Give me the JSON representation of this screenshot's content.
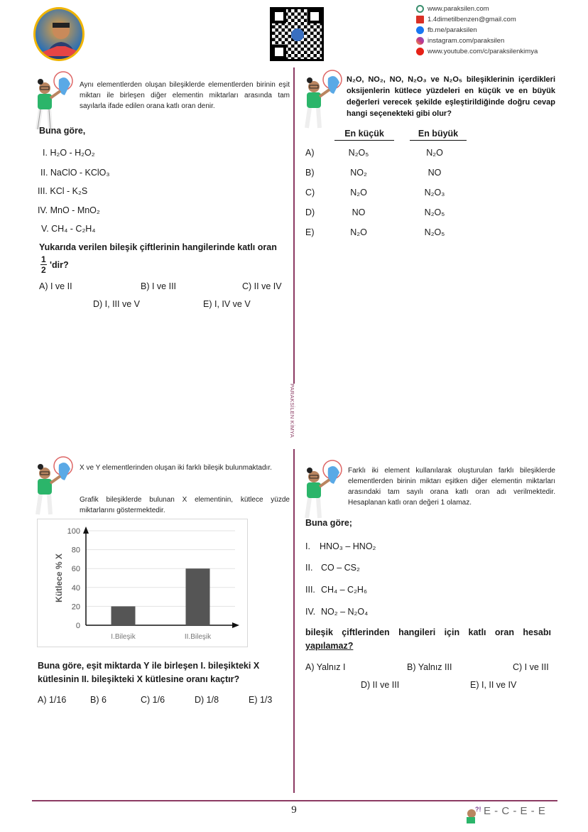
{
  "header": {
    "contacts": [
      {
        "icon": "globe-icon",
        "text": "www.paraksilen.com",
        "color": "#3a8f6e"
      },
      {
        "icon": "gmail-icon",
        "text": "1.4dimetilbenzen@gmail.com",
        "color": "#d93025"
      },
      {
        "icon": "facebook-icon",
        "text": "fb.me/paraksilen",
        "color": "#1877f2"
      },
      {
        "icon": "instagram-icon",
        "text": "instagram.com/paraksilen",
        "color": "#c13584"
      },
      {
        "icon": "youtube-icon",
        "text": "www.youtube.com/c/paraksilenkimya",
        "color": "#e62117"
      }
    ]
  },
  "divider_label": "PARAKSİLEN KİMYA",
  "q1": {
    "intro": "Aynı elementlerden oluşan bileşiklerde elementlerden birinin eşit miktarı ile birleşen diğer elementin miktarları arasında tam sayılarla ifade edilen orana katlı oran denir.",
    "lead": "Buna göre,",
    "items": [
      {
        "num": "I.",
        "text": "H₂O - H₂O₂"
      },
      {
        "num": "II.",
        "text": "NaClO - KClO₃"
      },
      {
        "num": "III.",
        "text": "KCl - K₂S"
      },
      {
        "num": "IV.",
        "text": "MnO - MnO₂"
      },
      {
        "num": "V.",
        "text": "CH₄ - C₂H₄"
      }
    ],
    "question": "Yukarıda verilen bileşik çiftlerinin hangilerinde katlı oran",
    "frac_num": "1",
    "frac_den": "2",
    "question_end": "'dir?",
    "options": [
      "A) I ve II",
      "B) I ve III",
      "C) II ve IV",
      "D) I, III ve V",
      "E) I, IV ve V"
    ]
  },
  "q2": {
    "question": "N₂O, NO₂, NO, N₂O₃ ve N₂O₅ bileşiklerinin içerdikleri oksijenlerin kütlece yüzdeleri en küçük ve en büyük değerleri verecek şekilde eşleştirildiğinde doğru cevap hangi seçenekteki gibi olur?",
    "col_min": "En küçük",
    "col_max": "En büyük",
    "rows": [
      {
        "letter": "A)",
        "min": "N₂O₅",
        "max": "N₂O"
      },
      {
        "letter": "B)",
        "min": "NO₂",
        "max": "NO"
      },
      {
        "letter": "C)",
        "min": "N₂O",
        "max": "N₂O₃"
      },
      {
        "letter": "D)",
        "min": "NO",
        "max": "N₂O₅"
      },
      {
        "letter": "E)",
        "min": "N₂O",
        "max": "N₂O₅"
      }
    ]
  },
  "q3": {
    "intro1": "X ve Y elementlerinden oluşan iki farklı bileşik bulunmaktadır.",
    "intro2": "Grafik bileşiklerde bulunan X elementinin, kütlece yüzde miktarlarını göstermektedir.",
    "question": "Buna göre, eşit miktarda Y ile birleşen I. bileşikteki X kütlesinin II. bileşikteki X kütlesine oranı kaçtır?",
    "options": [
      "A) 1/16",
      "B) 6",
      "C) 1/6",
      "D) 1/8",
      "E) 1/3"
    ]
  },
  "chart_data": {
    "type": "bar",
    "categories": [
      "I.Bileşik",
      "II.Bileşik"
    ],
    "values": [
      20,
      60
    ],
    "ylabel": "Kütlece % X",
    "xlabel": "",
    "ylim": [
      0,
      100
    ],
    "yticks": [
      "0",
      "20",
      "40",
      "60",
      "80",
      "100"
    ],
    "grid": true,
    "bar_color": "#555555"
  },
  "q4": {
    "intro": "Farklı iki element kullanılarak oluşturulan farklı bileşiklerde elementlerden birinin miktarı eşitken diğer elementin miktarları arasındaki tam sayılı orana katlı oran adı verilmektedir. Hesaplanan katlı oran değeri 1 olamaz.",
    "lead": "Buna göre;",
    "items": [
      {
        "num": "I.",
        "text": "HNO₃ – HNO₂"
      },
      {
        "num": "II.",
        "text": "CO – CS₂"
      },
      {
        "num": "III.",
        "text": "CH₄ – C₂H₆"
      },
      {
        "num": "IV.",
        "text": "NO₂ – N₂O₄"
      }
    ],
    "question": "bileşik çiftlerinden hangileri için katlı oran hesabı",
    "question_end": "yapılamaz?",
    "options": [
      "A) Yalnız I",
      "B) Yalnız III",
      "C) I ve III",
      "D) II ve III",
      "E) I, II ve IV"
    ]
  },
  "footer": {
    "page_number": "9",
    "answers": "E - C - E - E"
  },
  "colors": {
    "divider": "#8b3a62",
    "accent": "#7a3e8f"
  }
}
